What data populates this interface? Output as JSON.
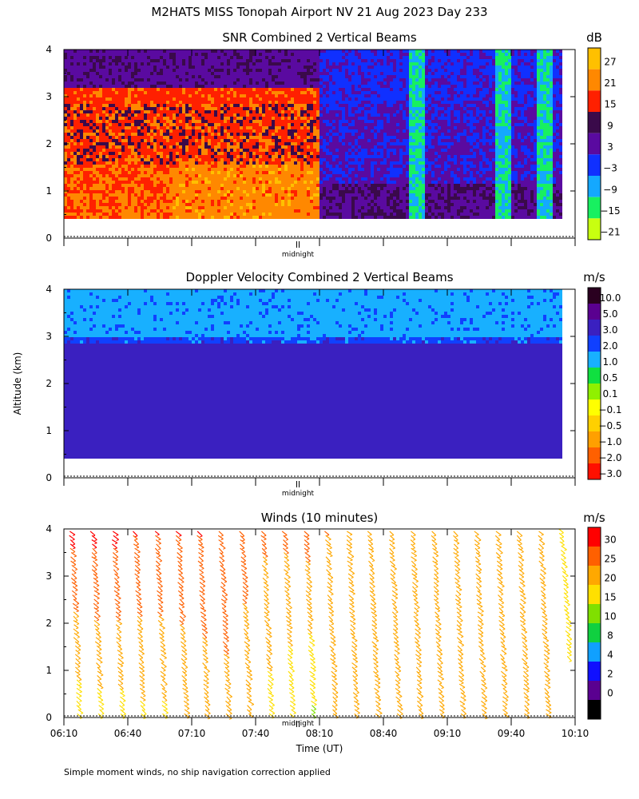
{
  "figure": {
    "title": "M2HATS MISS Tonopah Airport NV  21 Aug 2023 Day 233",
    "ylabel": "Altitude (km)",
    "xlabel": "Time (UT)",
    "midnight_label": "midnight",
    "footnote": "Simple moment winds, no ship navigation correction applied"
  },
  "chart_data": [
    {
      "type": "heatmap",
      "title": "SNR Combined 2 Vertical Beams",
      "colorbar_unit": "dB",
      "colorbar_ticks": [
        "27",
        "21",
        "15",
        "9",
        "3",
        "−3",
        "−9",
        "−15",
        "−21"
      ],
      "colorbar_colors": [
        "#ffc000",
        "#ff8800",
        "#ff2000",
        "#3a0a4a",
        "#5a0aa0",
        "#1030ff",
        "#14a8ff",
        "#18f060",
        "#c8ff10"
      ],
      "y_ticks": [
        "0",
        "1",
        "2",
        "3",
        "4"
      ],
      "ylim": [
        0,
        4
      ],
      "xlim": [
        "06:10",
        "10:10"
      ],
      "y_label": "Altitude (km)",
      "summary": "High SNR (15 to 27 dB) below ~3 km from 06:10 to ~08:10; lower SNR (−3 to 9 dB) afterwards with convective plumes near 08:55, 09:35 and 09:55."
    },
    {
      "type": "heatmap",
      "title": "Doppler Velocity Combined 2 Vertical Beams",
      "colorbar_unit": "m/s",
      "colorbar_ticks": [
        "10.0",
        "5.0",
        "3.0",
        "2.0",
        "1.0",
        "0.5",
        "0.1",
        "−0.1",
        "−0.5",
        "−1.0",
        "−2.0",
        "−3.0"
      ],
      "colorbar_colors": [
        "#2a0020",
        "#5a0090",
        "#3a20c0",
        "#1040ff",
        "#18b0ff",
        "#10e040",
        "#90f000",
        "#ffff00",
        "#ffd000",
        "#ffa000",
        "#ff6000",
        "#ff1000"
      ],
      "y_ticks": [
        "0",
        "1",
        "2",
        "3",
        "4"
      ],
      "ylim": [
        0,
        4
      ],
      "xlim": [
        "06:10",
        "10:10"
      ],
      "y_label": "Altitude (km)",
      "summary": "Velocity near 3 m/s below ~2.9 km, 1 to 2 m/s above 3 km."
    },
    {
      "type": "scatter",
      "title": "Winds (10 minutes)",
      "colorbar_unit": "m/s",
      "colorbar_ticks": [
        "30",
        "25",
        "20",
        "15",
        "10",
        "8",
        "4",
        "2",
        "0"
      ],
      "colorbar_colors": [
        "#ff0000",
        "#ff6000",
        "#ffa800",
        "#ffe000",
        "#80e000",
        "#10d040",
        "#10a0ff",
        "#1010ff",
        "#5a0090",
        "#000000"
      ],
      "y_ticks": [
        "0",
        "1",
        "2",
        "3",
        "4"
      ],
      "x_ticks": [
        "06:10",
        "06:40",
        "07:10",
        "07:40",
        "08:10",
        "08:40",
        "09:10",
        "09:40",
        "10:10"
      ],
      "ylim": [
        0,
        4
      ],
      "xlim": [
        "06:10",
        "10:10"
      ],
      "xlabel": "Time (UT)",
      "profile_times": [
        "06:15",
        "06:25",
        "06:35",
        "06:45",
        "06:55",
        "07:05",
        "07:15",
        "07:25",
        "07:35",
        "07:45",
        "07:55",
        "08:05",
        "08:15",
        "08:25",
        "08:35",
        "08:45",
        "08:55",
        "09:05",
        "09:15",
        "09:25",
        "09:35",
        "09:45",
        "09:55",
        "10:05"
      ],
      "profile_speed_upper_ms": [
        31,
        31,
        31,
        30,
        30,
        30,
        30,
        29,
        28,
        26,
        26,
        27,
        25,
        24,
        24,
        23,
        22,
        22,
        22,
        22,
        21,
        23,
        22,
        18
      ],
      "profile_speed_lower_ms": [
        17,
        18,
        18,
        19,
        19,
        20,
        21,
        23,
        20,
        18,
        16,
        14,
        20,
        22,
        22,
        22,
        21,
        21,
        21,
        21,
        21,
        23,
        22,
        15
      ]
    }
  ]
}
